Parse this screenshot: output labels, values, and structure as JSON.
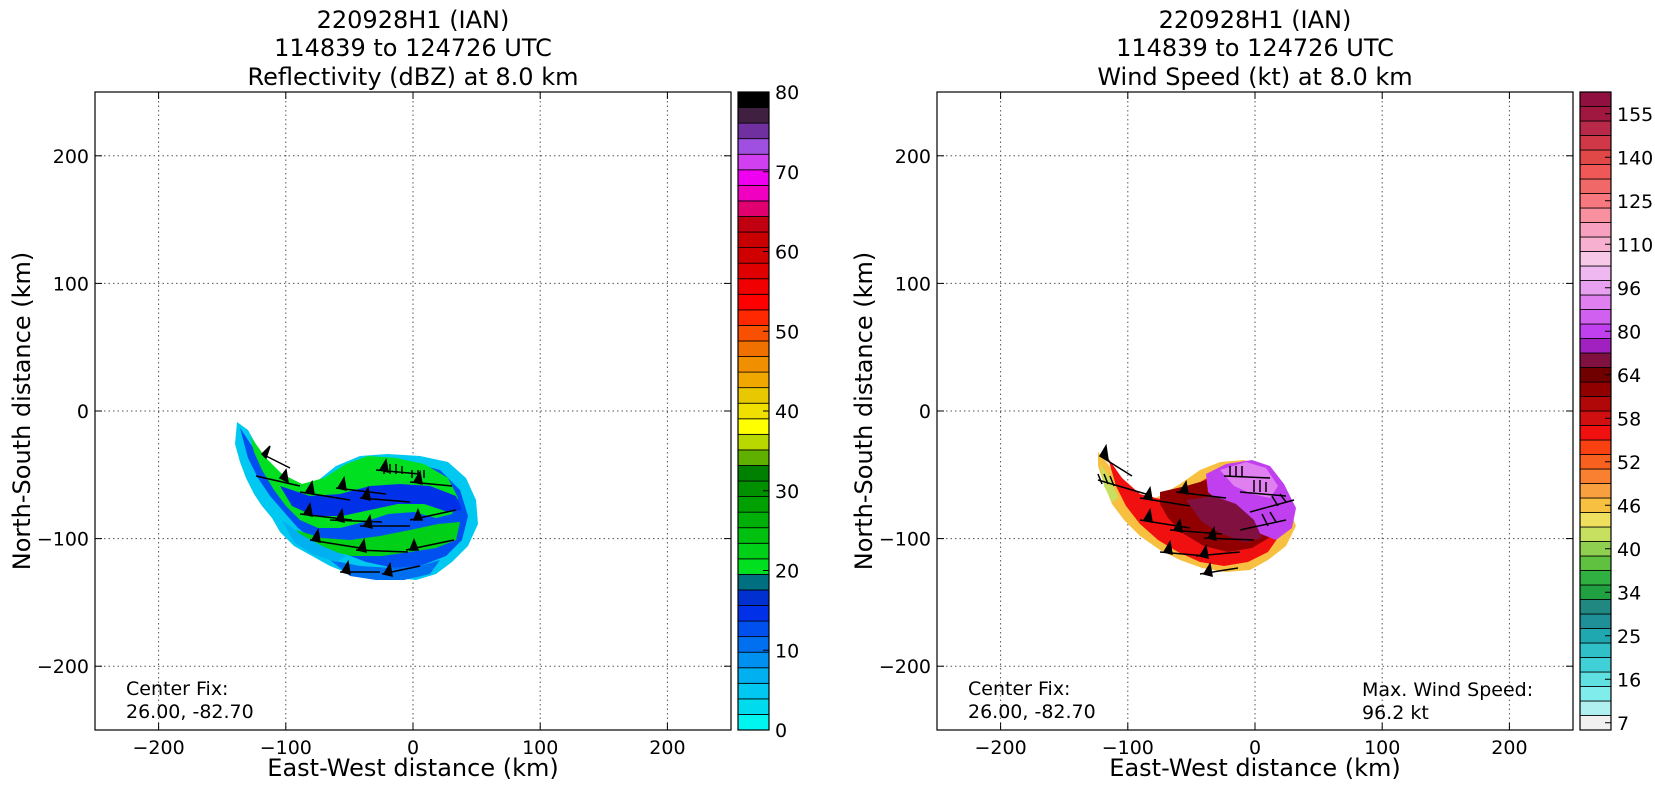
{
  "chart_data": [
    {
      "type": "heatmap",
      "title_lines": [
        "220928H1 (IAN)",
        "114839 to 124726 UTC",
        "Reflectivity (dBZ) at 8.0 km"
      ],
      "xlabel": "East-West distance (km)",
      "ylabel": "North-South distance (km)",
      "xlim": [
        -250,
        250
      ],
      "ylim": [
        -250,
        250
      ],
      "xticks": [
        -200,
        -100,
        0,
        100,
        200
      ],
      "yticks": [
        -200,
        -100,
        0,
        100,
        200
      ],
      "grid": true,
      "colorbar": {
        "min": 0,
        "max": 80,
        "ticks": [
          0,
          10,
          20,
          30,
          40,
          50,
          60,
          70,
          80
        ],
        "colors": [
          "#00f5f0",
          "#00dcee",
          "#00c8f0",
          "#00b0f0",
          "#0090f0",
          "#0070f0",
          "#0050f0",
          "#0030e8",
          "#0030d0",
          "#007080",
          "#00e020",
          "#00d018",
          "#00c010",
          "#00b008",
          "#00a000",
          "#009000",
          "#008000",
          "#60b000",
          "#b8d800",
          "#ffff00",
          "#f0e000",
          "#e8c800",
          "#f0a800",
          "#f09000",
          "#f07000",
          "#f85000",
          "#ff2800",
          "#ff0000",
          "#f00000",
          "#e00000",
          "#d00000",
          "#c80000",
          "#c00010",
          "#e00070",
          "#f000c0",
          "#f000f0",
          "#d040f0",
          "#a050e0",
          "#7030a0",
          "#402040",
          "#000000"
        ]
      },
      "annotation": [
        "Center Fix:",
        "26.00, -82.70"
      ],
      "data_region": {
        "x_range": [
          -140,
          50
        ],
        "y_range": [
          -135,
          -8
        ]
      }
    },
    {
      "type": "heatmap",
      "title_lines": [
        "220928H1 (IAN)",
        "114839 to 124726 UTC",
        "Wind Speed (kt) at 8.0 km"
      ],
      "xlabel": "East-West distance (km)",
      "ylabel": "North-South distance (km)",
      "xlim": [
        -250,
        250
      ],
      "ylim": [
        -250,
        250
      ],
      "xticks": [
        -200,
        -100,
        0,
        100,
        200
      ],
      "yticks": [
        -200,
        -100,
        0,
        100,
        200
      ],
      "grid": true,
      "colorbar": {
        "tick_labels": [
          "7",
          "16",
          "25",
          "34",
          "40",
          "46",
          "52",
          "58",
          "64",
          "80",
          "96",
          "110",
          "125",
          "140",
          "155"
        ],
        "colors": [
          "#f0f0f0",
          "#b0f0f0",
          "#80ecec",
          "#60e0e0",
          "#40d0d8",
          "#30c0c8",
          "#20a8b0",
          "#209098",
          "#208880",
          "#20a040",
          "#30b040",
          "#60c040",
          "#90d050",
          "#c8e060",
          "#f0e060",
          "#f8c040",
          "#f8a040",
          "#f88030",
          "#f86020",
          "#f84010",
          "#f01010",
          "#d01010",
          "#b00808",
          "#900000",
          "#700000",
          "#801040",
          "#a020c0",
          "#c040f0",
          "#d060f0",
          "#e080f0",
          "#e8a0f0",
          "#f0b8f0",
          "#f8c8e8",
          "#f8b0d0",
          "#f8a0c0",
          "#f890a0",
          "#f87880",
          "#f06868",
          "#f05858",
          "#e04848",
          "#d03848",
          "#b82848",
          "#a01840",
          "#901040"
        ]
      },
      "annotation": [
        "Center Fix:",
        "26.00, -82.70"
      ],
      "max_wind_label": [
        "Max. Wind Speed:",
        "96.2 kt"
      ],
      "data_region": {
        "x_range": [
          -122,
          35
        ],
        "y_range": [
          -135,
          -30
        ]
      }
    }
  ]
}
